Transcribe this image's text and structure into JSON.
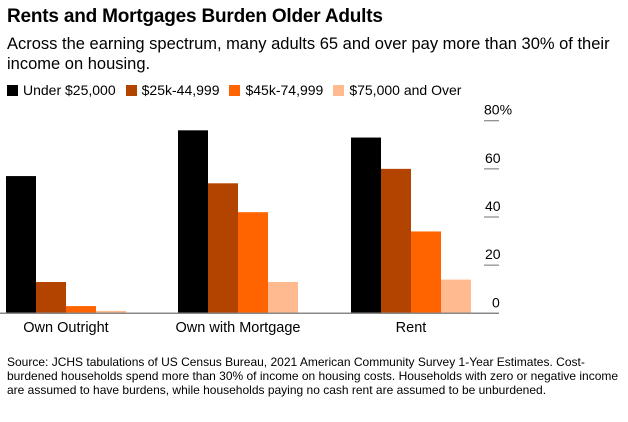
{
  "chart_data": {
    "type": "bar",
    "title": "Rents and Mortgages Burden Older Adults",
    "subtitle": "Across the earning spectrum, many adults 65 and over pay more than 30% of their income on housing.",
    "categories": [
      "Own Outright",
      "Own with Mortgage",
      "Rent"
    ],
    "series": [
      {
        "name": "Under $25,000",
        "color": "#000000",
        "values": [
          57,
          76,
          73
        ]
      },
      {
        "name": "$25k-44,999",
        "color": "#b34400",
        "values": [
          13,
          54,
          60
        ]
      },
      {
        "name": "$45k-74,999",
        "color": "#ff6400",
        "values": [
          3,
          42,
          34
        ]
      },
      {
        "name": "$75,000 and Over",
        "color": "#ffbb8f",
        "values": [
          1,
          13,
          14
        ]
      }
    ],
    "ylim": [
      0,
      80
    ],
    "yticks": [
      "0",
      "20",
      "40",
      "60",
      "80%"
    ],
    "yaxis_position": "right",
    "legend_placement": "top-left",
    "grid": false,
    "source": "Source: JCHS tabulations of US Census Bureau, 2021 American Community Survey 1-Year Estimates. Cost-burdened households spend more than 30% of income on housing costs. Households with zero or negative income are assumed to have burdens, while households paying no cash rent are assumed to be unburdened."
  }
}
